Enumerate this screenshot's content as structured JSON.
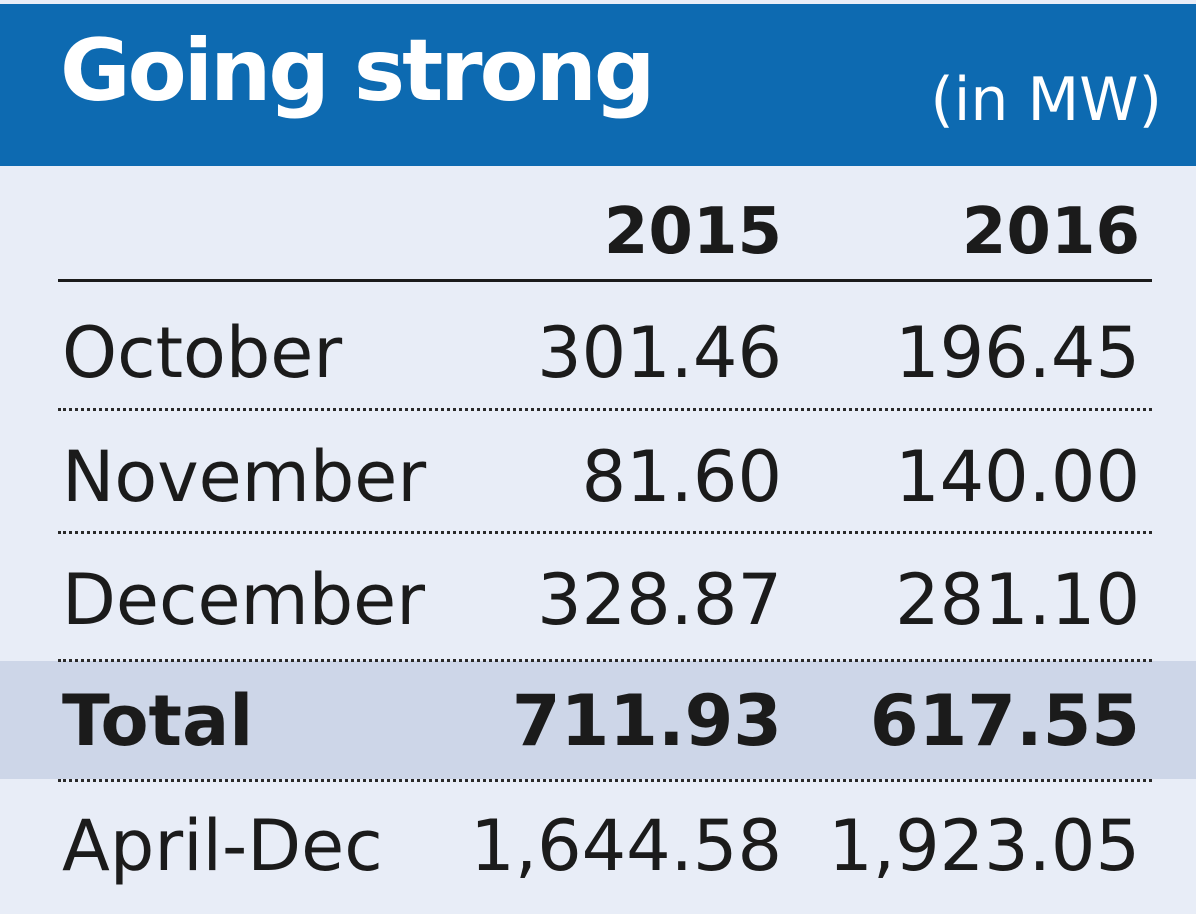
{
  "header": {
    "title": "Going strong",
    "unit": "(in MW)"
  },
  "colors": {
    "header_bg": "#0d6ab1",
    "body_bg": "#e8edf7",
    "total_band": "#cdd6e8"
  },
  "chart_data": {
    "type": "table",
    "title": "Going strong",
    "unit": "(in MW)",
    "columns": [
      "2015",
      "2016"
    ],
    "rows": [
      {
        "label": "October",
        "values": [
          "301.46",
          "196.45"
        ]
      },
      {
        "label": "November",
        "values": [
          "81.60",
          "140.00"
        ]
      },
      {
        "label": "December",
        "values": [
          "328.87",
          "281.10"
        ]
      },
      {
        "label": "Total",
        "values": [
          "711.93",
          "617.55"
        ]
      },
      {
        "label": "April-Dec",
        "values": [
          "1,644.58",
          "1,923.05"
        ]
      }
    ]
  }
}
